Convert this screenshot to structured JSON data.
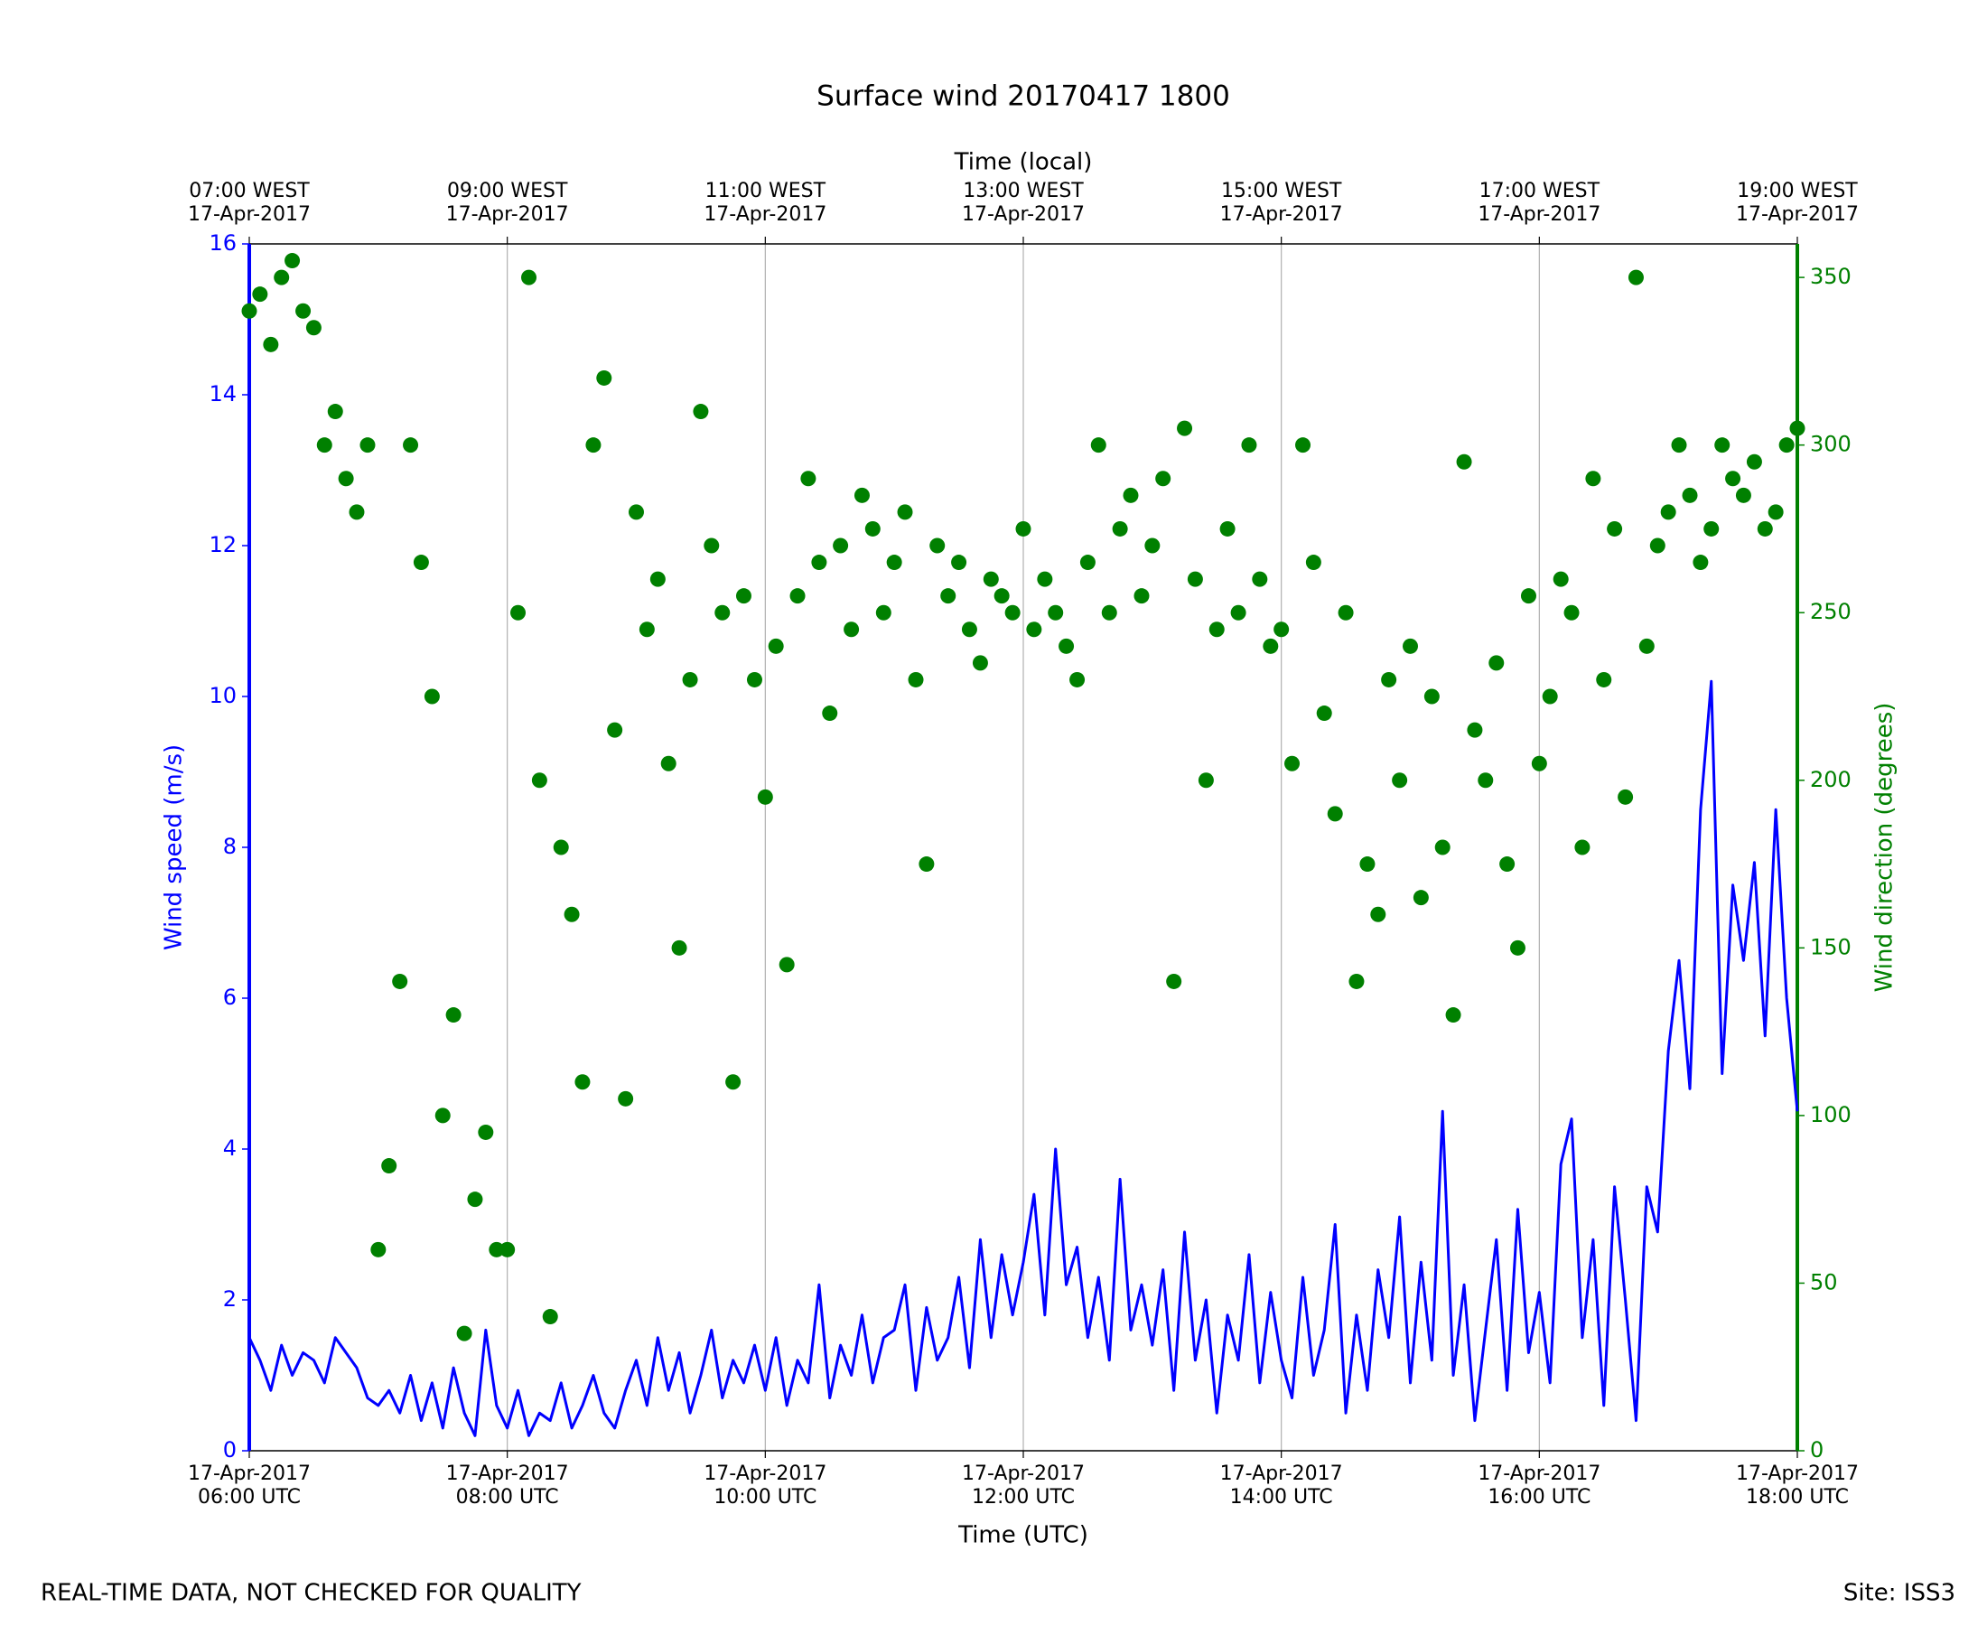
{
  "chart_data": {
    "type": "line",
    "title": "Surface wind 20170417 1800",
    "xlabel": "Time (UTC)",
    "x2label": "Time (local)",
    "ylabel": "Wind speed (m/s)",
    "y2label": "Wind direction (degrees)",
    "footer_left": "REAL-TIME DATA, NOT CHECKED FOR QUALITY",
    "footer_right": "Site: ISS3",
    "grid": "x",
    "xlim": [
      6,
      18
    ],
    "xticks": [
      {
        "value": 6,
        "label": [
          "17-Apr-2017",
          "06:00 UTC"
        ]
      },
      {
        "value": 8,
        "label": [
          "17-Apr-2017",
          "08:00 UTC"
        ]
      },
      {
        "value": 10,
        "label": [
          "17-Apr-2017",
          "10:00 UTC"
        ]
      },
      {
        "value": 12,
        "label": [
          "17-Apr-2017",
          "12:00 UTC"
        ]
      },
      {
        "value": 14,
        "label": [
          "17-Apr-2017",
          "14:00 UTC"
        ]
      },
      {
        "value": 16,
        "label": [
          "17-Apr-2017",
          "16:00 UTC"
        ]
      },
      {
        "value": 18,
        "label": [
          "17-Apr-2017",
          "18:00 UTC"
        ]
      }
    ],
    "x2ticks": [
      {
        "value": 6,
        "label": [
          "07:00 WEST",
          "17-Apr-2017"
        ]
      },
      {
        "value": 8,
        "label": [
          "09:00 WEST",
          "17-Apr-2017"
        ]
      },
      {
        "value": 10,
        "label": [
          "11:00 WEST",
          "17-Apr-2017"
        ]
      },
      {
        "value": 12,
        "label": [
          "13:00 WEST",
          "17-Apr-2017"
        ]
      },
      {
        "value": 14,
        "label": [
          "15:00 WEST",
          "17-Apr-2017"
        ]
      },
      {
        "value": 16,
        "label": [
          "17:00 WEST",
          "17-Apr-2017"
        ]
      },
      {
        "value": 18,
        "label": [
          "19:00 WEST",
          "17-Apr-2017"
        ]
      }
    ],
    "ylim": [
      0,
      16
    ],
    "yticks": [
      0,
      2,
      4,
      6,
      8,
      10,
      12,
      14,
      16
    ],
    "y2lim": [
      0,
      360
    ],
    "y2ticks": [
      0,
      50,
      100,
      150,
      200,
      250,
      300,
      350
    ],
    "x": [
      6,
      6.083,
      6.167,
      6.25,
      6.333,
      6.417,
      6.5,
      6.583,
      6.667,
      6.75,
      6.833,
      6.917,
      7,
      7.083,
      7.167,
      7.25,
      7.333,
      7.417,
      7.5,
      7.583,
      7.667,
      7.75,
      7.833,
      7.917,
      8,
      8.083,
      8.167,
      8.25,
      8.333,
      8.417,
      8.5,
      8.583,
      8.667,
      8.75,
      8.833,
      8.917,
      9,
      9.083,
      9.167,
      9.25,
      9.333,
      9.417,
      9.5,
      9.583,
      9.667,
      9.75,
      9.833,
      9.917,
      10,
      10.083,
      10.167,
      10.25,
      10.333,
      10.417,
      10.5,
      10.583,
      10.667,
      10.75,
      10.833,
      10.917,
      11,
      11.083,
      11.167,
      11.25,
      11.333,
      11.417,
      11.5,
      11.583,
      11.667,
      11.75,
      11.833,
      11.917,
      12,
      12.083,
      12.167,
      12.25,
      12.333,
      12.417,
      12.5,
      12.583,
      12.667,
      12.75,
      12.833,
      12.917,
      13,
      13.083,
      13.167,
      13.25,
      13.333,
      13.417,
      13.5,
      13.583,
      13.667,
      13.75,
      13.833,
      13.917,
      14,
      14.083,
      14.167,
      14.25,
      14.333,
      14.417,
      14.5,
      14.583,
      14.667,
      14.75,
      14.833,
      14.917,
      15,
      15.083,
      15.167,
      15.25,
      15.333,
      15.417,
      15.5,
      15.583,
      15.667,
      15.75,
      15.833,
      15.917,
      16,
      16.083,
      16.167,
      16.25,
      16.333,
      16.417,
      16.5,
      16.583,
      16.667,
      16.75,
      16.833,
      16.917,
      17,
      17.083,
      17.167,
      17.25,
      17.333,
      17.417,
      17.5,
      17.583,
      17.667,
      17.75,
      17.833,
      17.917,
      18
    ],
    "series": [
      {
        "type": "line",
        "color": "#0000ff",
        "values": [
          1.5,
          1.2,
          0.8,
          1.4,
          1.0,
          1.3,
          1.2,
          0.9,
          1.5,
          1.3,
          1.1,
          0.7,
          0.6,
          0.8,
          0.5,
          1.0,
          0.4,
          0.9,
          0.3,
          1.1,
          0.5,
          0.2,
          1.6,
          0.6,
          0.3,
          0.8,
          0.2,
          0.5,
          0.4,
          0.9,
          0.3,
          0.6,
          1.0,
          0.5,
          0.3,
          0.8,
          1.2,
          0.6,
          1.5,
          0.8,
          1.3,
          0.5,
          1.0,
          1.6,
          0.7,
          1.2,
          0.9,
          1.4,
          0.8,
          1.5,
          0.6,
          1.2,
          0.9,
          2.2,
          0.7,
          1.4,
          1.0,
          1.8,
          0.9,
          1.5,
          1.6,
          2.2,
          0.8,
          1.9,
          1.2,
          1.5,
          2.3,
          1.1,
          2.8,
          1.5,
          2.6,
          1.8,
          2.5,
          3.4,
          1.8,
          4.0,
          2.2,
          2.7,
          1.5,
          2.3,
          1.2,
          3.6,
          1.6,
          2.2,
          1.4,
          2.4,
          0.8,
          2.9,
          1.2,
          2.0,
          0.5,
          1.8,
          1.2,
          2.6,
          0.9,
          2.1,
          1.2,
          0.7,
          2.3,
          1.0,
          1.6,
          3.0,
          0.5,
          1.8,
          0.8,
          2.4,
          1.5,
          3.1,
          0.9,
          2.5,
          1.2,
          4.5,
          1.0,
          2.2,
          0.4,
          1.6,
          2.8,
          0.8,
          3.2,
          1.3,
          2.1,
          0.9,
          3.8,
          4.4,
          1.5,
          2.8,
          0.6,
          3.5,
          2.0,
          0.4,
          3.5,
          2.9,
          5.3,
          6.5,
          4.8,
          8.5,
          10.2,
          5.0,
          7.5,
          6.5,
          7.8,
          5.5,
          8.5,
          6.0,
          4.5
        ]
      },
      {
        "type": "scatter",
        "color": "#008000",
        "axis": "y2",
        "values": [
          340,
          345,
          330,
          350,
          355,
          340,
          335,
          300,
          310,
          290,
          280,
          300,
          60,
          85,
          140,
          300,
          265,
          225,
          100,
          130,
          35,
          75,
          95,
          60,
          60,
          250,
          350,
          200,
          40,
          180,
          160,
          110,
          300,
          320,
          215,
          105,
          280,
          245,
          260,
          205,
          150,
          230,
          310,
          270,
          250,
          110,
          255,
          230,
          195,
          240,
          145,
          255,
          290,
          265,
          220,
          270,
          245,
          285,
          275,
          250,
          265,
          280,
          230,
          175,
          270,
          255,
          265,
          245,
          235,
          260,
          255,
          250,
          275,
          245,
          260,
          250,
          240,
          230,
          265,
          300,
          250,
          275,
          285,
          255,
          270,
          290,
          140,
          305,
          260,
          200,
          245,
          275,
          250,
          300,
          260,
          240,
          245,
          205,
          300,
          265,
          220,
          190,
          250,
          140,
          175,
          160,
          230,
          200,
          240,
          165,
          225,
          180,
          130,
          295,
          215,
          200,
          235,
          175,
          150,
          255,
          205,
          225,
          260,
          250,
          180,
          290,
          230,
          275,
          195,
          350,
          240,
          270,
          280,
          300,
          285,
          265,
          275,
          300,
          290,
          285,
          295,
          275,
          280,
          300,
          305
        ]
      }
    ]
  }
}
